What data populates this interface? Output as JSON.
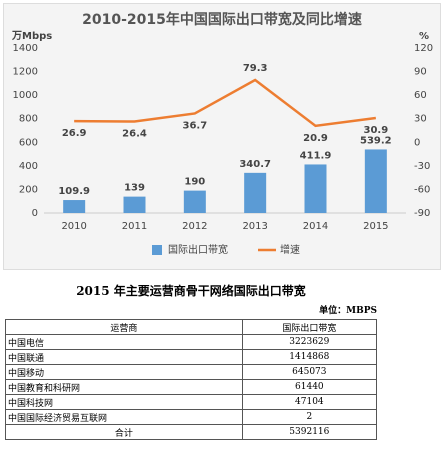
{
  "chart_data": {
    "type": "bar-line",
    "title": "2010-2015年中国国际出口带宽及同比增速",
    "y_label": "万Mbps",
    "y2_label": "%",
    "categories": [
      "2010",
      "2011",
      "2012",
      "2013",
      "2014",
      "2015"
    ],
    "series": [
      {
        "name": "国际出口带宽",
        "type": "bar",
        "color": "#5b9bd5",
        "values": [
          109.9,
          139,
          190,
          340.7,
          411.9,
          539.2
        ]
      },
      {
        "name": "增速",
        "type": "line",
        "color": "#ed7d31",
        "axis": "y2",
        "values": [
          26.9,
          26.4,
          36.7,
          79.3,
          20.9,
          30.9
        ]
      }
    ],
    "ylim": [
      0,
      1400
    ],
    "yticks": [
      0,
      200,
      400,
      600,
      800,
      1000,
      1200,
      1400
    ],
    "y2lim": [
      -90,
      120
    ],
    "y2ticks": [
      -90,
      -60,
      -30,
      0,
      30,
      60,
      90,
      120
    ],
    "legend": "bottom"
  },
  "table": {
    "title": "2015 年主要运营商骨干网络国际出口带宽",
    "unit": "单位：MBPS",
    "header": [
      "运营商",
      "国际出口带宽"
    ],
    "rows": [
      [
        "中国电信",
        3223629
      ],
      [
        "中国联通",
        1414868
      ],
      [
        "中国移动",
        645073
      ],
      [
        "中国教育和科研网",
        61440
      ],
      [
        "中国科技网",
        47104
      ],
      [
        "中国国际经济贸易互联网",
        2
      ]
    ],
    "total": [
      "合计",
      5392116
    ]
  }
}
